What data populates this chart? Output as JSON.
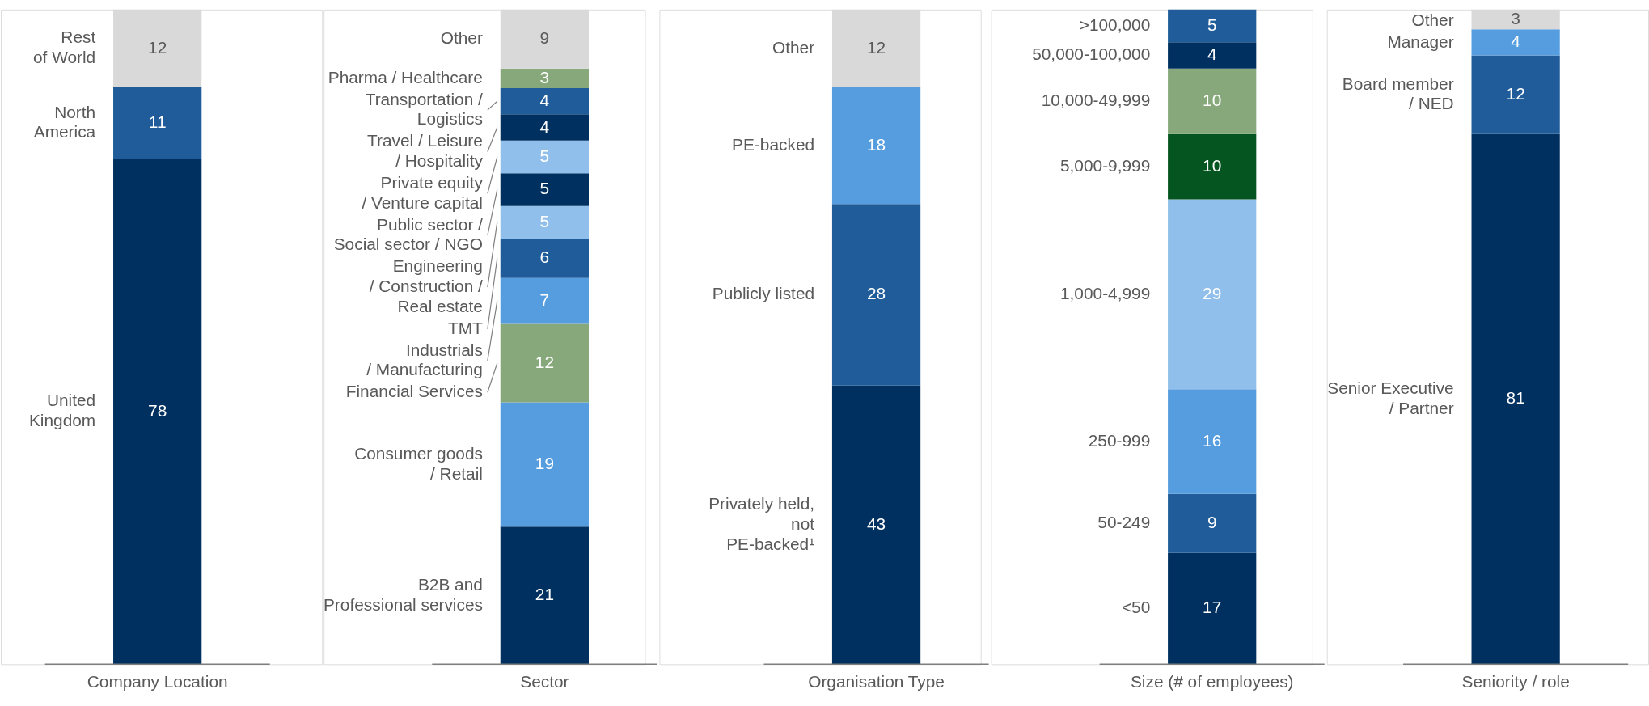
{
  "chart_data": [
    {
      "type": "bar",
      "stacked": true,
      "data_labels": true,
      "legend": false,
      "categories": [
        "Company Location"
      ],
      "series": [
        {
          "name": "United\nKingdom",
          "color": "#003060",
          "values": [
            78
          ]
        },
        {
          "name": "North\nAmerica",
          "color": "#1f5c99",
          "values": [
            11
          ]
        },
        {
          "name": "Rest\nof World",
          "color": "#d9d9d9",
          "values": [
            12
          ]
        }
      ]
    },
    {
      "type": "bar",
      "stacked": true,
      "data_labels": true,
      "legend": false,
      "categories": [
        "Sector"
      ],
      "series": [
        {
          "name": "B2B and\nProfessional services",
          "color": "#003060",
          "values": [
            21
          ]
        },
        {
          "name": "Consumer goods\n/ Retail",
          "color": "#559ddf",
          "values": [
            19
          ]
        },
        {
          "name": "Financial Services",
          "color": "#86a87a",
          "values": [
            12
          ]
        },
        {
          "name": "Industrials\n/ Manufacturing",
          "color": "#559ddf",
          "values": [
            7
          ]
        },
        {
          "name": "TMT",
          "color": "#1f5c99",
          "values": [
            6
          ]
        },
        {
          "name": "Engineering\n/ Construction /\nReal estate",
          "color": "#8fbfea",
          "values": [
            5
          ]
        },
        {
          "name": "Public sector /\nSocial sector / NGO",
          "color": "#003060",
          "values": [
            5
          ]
        },
        {
          "name": "Private equity\n/ Venture capital",
          "color": "#8fbfea",
          "values": [
            5
          ]
        },
        {
          "name": "Travel / Leisure\n/ Hospitality",
          "color": "#003060",
          "values": [
            4
          ]
        },
        {
          "name": "Transportation /\nLogistics",
          "color": "#1f5c99",
          "values": [
            4
          ]
        },
        {
          "name": "Pharma / Healthcare",
          "color": "#86a87a",
          "values": [
            3
          ]
        },
        {
          "name": "Other",
          "color": "#d9d9d9",
          "values": [
            9
          ]
        }
      ]
    },
    {
      "type": "bar",
      "stacked": true,
      "data_labels": true,
      "legend": false,
      "categories": [
        "Organisation Type"
      ],
      "series": [
        {
          "name": "Privately held,\nnot\nPE-backed¹",
          "color": "#003060",
          "values": [
            43
          ]
        },
        {
          "name": "Publicly listed",
          "color": "#1f5c99",
          "values": [
            28
          ]
        },
        {
          "name": "PE-backed",
          "color": "#559ddf",
          "values": [
            18
          ]
        },
        {
          "name": "Other",
          "color": "#d9d9d9",
          "values": [
            12
          ]
        }
      ]
    },
    {
      "type": "bar",
      "stacked": true,
      "data_labels": true,
      "legend": false,
      "categories": [
        "Size (# of employees)"
      ],
      "series": [
        {
          "name": "<50",
          "color": "#003060",
          "values": [
            17
          ]
        },
        {
          "name": "50-249",
          "color": "#1f5c99",
          "values": [
            9
          ]
        },
        {
          "name": "250-999",
          "color": "#559ddf",
          "values": [
            16
          ]
        },
        {
          "name": "1,000-4,999",
          "color": "#8fbfea",
          "values": [
            29
          ]
        },
        {
          "name": "5,000-9,999",
          "color": "#055520",
          "values": [
            10
          ]
        },
        {
          "name": "10,000-49,999",
          "color": "#86a87a",
          "values": [
            10
          ]
        },
        {
          "name": "50,000-100,000",
          "color": "#003060",
          "values": [
            4
          ]
        },
        {
          "name": ">100,000",
          "color": "#1f5c99",
          "values": [
            5
          ]
        }
      ]
    },
    {
      "type": "bar",
      "stacked": true,
      "data_labels": true,
      "legend": false,
      "categories": [
        "Seniority / role"
      ],
      "series": [
        {
          "name": "Senior Executive\n/ Partner",
          "color": "#003060",
          "values": [
            81
          ]
        },
        {
          "name": "Board member\n/ NED",
          "color": "#1f5c99",
          "values": [
            12
          ]
        },
        {
          "name": "Manager",
          "color": "#559ddf",
          "values": [
            4
          ]
        },
        {
          "name": "Other",
          "color": "#d9d9d9",
          "values": [
            3
          ]
        }
      ]
    }
  ]
}
